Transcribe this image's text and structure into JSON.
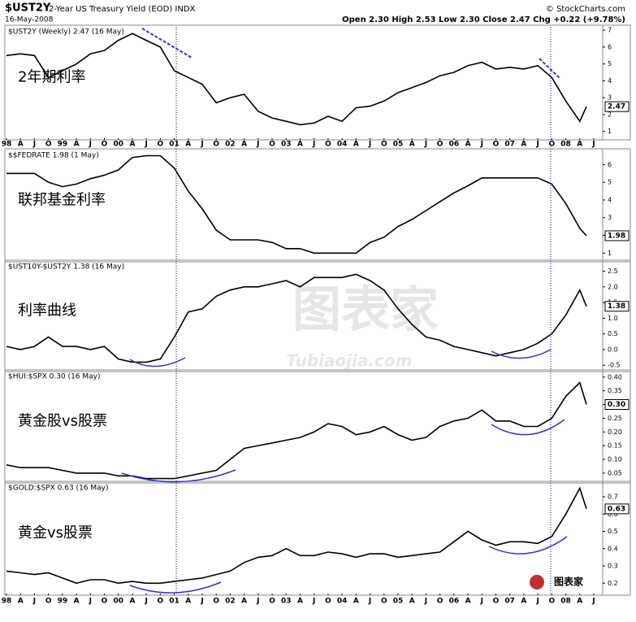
{
  "header": {
    "symbol": "$UST2Y",
    "description": "2-Year US Treasury Yield (EOD) INDX",
    "date": "16-May-2008",
    "quote": "Open 2.30 High 2.53 Low 2.30 Close 2.47 Chg +0.22 (+9.78%)",
    "credit": "© StockCharts.com",
    "watermark": "图表家",
    "watermark_url": "Tubiaojia.com"
  },
  "chart_data": [
    {
      "type": "line",
      "title": "$UST2Y (Weekly) 2.47 (16 May)",
      "annotation": "2年期利率",
      "last_label": "2.47",
      "color": "#000000",
      "x": [
        1998,
        1998.25,
        1998.5,
        1998.75,
        1999,
        1999.25,
        1999.5,
        1999.75,
        2000,
        2000.25,
        2000.5,
        2000.75,
        2001,
        2001.25,
        2001.5,
        2001.75,
        2002,
        2002.25,
        2002.5,
        2002.75,
        2003,
        2003.25,
        2003.5,
        2003.75,
        2004,
        2004.25,
        2004.5,
        2004.75,
        2005,
        2005.25,
        2005.5,
        2005.75,
        2006,
        2006.25,
        2006.5,
        2006.75,
        2007,
        2007.25,
        2007.5,
        2007.75,
        2008,
        2008.25,
        2008.37
      ],
      "values": [
        5.5,
        5.6,
        5.5,
        4.2,
        4.6,
        5.0,
        5.6,
        5.8,
        6.4,
        6.8,
        6.4,
        6.0,
        4.6,
        4.2,
        3.8,
        2.7,
        3.0,
        3.2,
        2.2,
        1.8,
        1.6,
        1.4,
        1.5,
        1.9,
        1.6,
        2.4,
        2.5,
        2.8,
        3.3,
        3.6,
        3.9,
        4.3,
        4.5,
        4.9,
        5.1,
        4.7,
        4.8,
        4.7,
        4.9,
        4.2,
        2.8,
        1.6,
        2.47
      ],
      "xlim": [
        1998,
        2008.66
      ],
      "ylim": [
        0.6,
        7.2
      ],
      "yticks": [
        1,
        2,
        3,
        4,
        5,
        6,
        7
      ],
      "xticks": [
        {
          "value": 1998,
          "label": "98"
        },
        {
          "value": 1998.25,
          "label": "A"
        },
        {
          "value": 1998.5,
          "label": "J"
        },
        {
          "value": 1998.75,
          "label": "O"
        },
        {
          "value": 1999,
          "label": "99"
        },
        {
          "value": 1999.25,
          "label": "A"
        },
        {
          "value": 1999.5,
          "label": "J"
        },
        {
          "value": 1999.75,
          "label": "O"
        },
        {
          "value": 2000,
          "label": "00"
        },
        {
          "value": 2000.25,
          "label": "A"
        },
        {
          "value": 2000.5,
          "label": "J"
        },
        {
          "value": 2000.75,
          "label": "O"
        },
        {
          "value": 2001,
          "label": "01"
        },
        {
          "value": 2001.25,
          "label": "A"
        },
        {
          "value": 2001.5,
          "label": "J"
        },
        {
          "value": 2001.75,
          "label": "O"
        },
        {
          "value": 2002,
          "label": "02"
        },
        {
          "value": 2002.25,
          "label": "A"
        },
        {
          "value": 2002.5,
          "label": "J"
        },
        {
          "value": 2002.75,
          "label": "O"
        },
        {
          "value": 2003,
          "label": "03"
        },
        {
          "value": 2003.25,
          "label": "A"
        },
        {
          "value": 2003.5,
          "label": "J"
        },
        {
          "value": 2003.75,
          "label": "O"
        },
        {
          "value": 2004,
          "label": "04"
        },
        {
          "value": 2004.25,
          "label": "A"
        },
        {
          "value": 2004.5,
          "label": "J"
        },
        {
          "value": 2004.75,
          "label": "O"
        },
        {
          "value": 2005,
          "label": "05"
        },
        {
          "value": 2005.25,
          "label": "A"
        },
        {
          "value": 2005.5,
          "label": "J"
        },
        {
          "value": 2005.75,
          "label": "O"
        },
        {
          "value": 2006,
          "label": "06"
        },
        {
          "value": 2006.25,
          "label": "A"
        },
        {
          "value": 2006.5,
          "label": "J"
        },
        {
          "value": 2006.75,
          "label": "O"
        },
        {
          "value": 2007,
          "label": "07"
        },
        {
          "value": 2007.25,
          "label": "A"
        },
        {
          "value": 2007.5,
          "label": "J"
        },
        {
          "value": 2007.75,
          "label": "O"
        },
        {
          "value": 2008,
          "label": "08"
        },
        {
          "value": 2008.25,
          "label": "A"
        },
        {
          "value": 2008.5,
          "label": "J"
        }
      ]
    },
    {
      "type": "line",
      "title": "$$FEDRATE 1.98 (1 May)",
      "annotation": "联邦基金利率",
      "last_label": "1.98",
      "color": "#000000",
      "x": [
        1998,
        1998.25,
        1998.5,
        1998.75,
        1999,
        1999.25,
        1999.5,
        1999.75,
        2000,
        2000.25,
        2000.5,
        2000.75,
        2001,
        2001.25,
        2001.5,
        2001.75,
        2002,
        2002.25,
        2002.5,
        2002.75,
        2003,
        2003.25,
        2003.5,
        2003.75,
        2004,
        2004.25,
        2004.5,
        2004.75,
        2005,
        2005.25,
        2005.5,
        2005.75,
        2006,
        2006.25,
        2006.5,
        2006.75,
        2007,
        2007.25,
        2007.5,
        2007.75,
        2008,
        2008.25,
        2008.37
      ],
      "values": [
        5.5,
        5.5,
        5.5,
        5.0,
        4.75,
        4.9,
        5.2,
        5.4,
        5.7,
        6.4,
        6.5,
        6.5,
        5.8,
        4.5,
        3.5,
        2.3,
        1.75,
        1.75,
        1.75,
        1.6,
        1.25,
        1.25,
        1.0,
        1.0,
        1.0,
        1.0,
        1.6,
        1.9,
        2.5,
        2.9,
        3.4,
        3.9,
        4.4,
        4.8,
        5.25,
        5.25,
        5.25,
        5.25,
        5.25,
        4.9,
        3.8,
        2.4,
        1.98
      ],
      "xlim": [
        1998,
        2008.66
      ],
      "ylim": [
        0.6,
        6.8
      ],
      "yticks": [
        1,
        2,
        3,
        4,
        5,
        6
      ]
    },
    {
      "type": "line",
      "title": "$UST10Y-$UST2Y 1.38 (16 May)",
      "annotation": "利率曲线",
      "last_label": "1.38",
      "color": "#000000",
      "x": [
        1998,
        1998.25,
        1998.5,
        1998.75,
        1999,
        1999.25,
        1999.5,
        1999.75,
        2000,
        2000.25,
        2000.5,
        2000.75,
        2001,
        2001.25,
        2001.5,
        2001.75,
        2002,
        2002.25,
        2002.5,
        2002.75,
        2003,
        2003.25,
        2003.5,
        2003.75,
        2004,
        2004.25,
        2004.5,
        2004.75,
        2005,
        2005.25,
        2005.5,
        2005.75,
        2006,
        2006.25,
        2006.5,
        2006.75,
        2007,
        2007.25,
        2007.5,
        2007.75,
        2008,
        2008.25,
        2008.37
      ],
      "values": [
        0.1,
        0.0,
        0.1,
        0.4,
        0.1,
        0.1,
        0.0,
        0.1,
        -0.3,
        -0.4,
        -0.4,
        -0.3,
        0.4,
        1.2,
        1.3,
        1.7,
        1.9,
        2.0,
        2.0,
        2.1,
        2.2,
        2.0,
        2.3,
        2.3,
        2.3,
        2.4,
        2.2,
        1.9,
        1.3,
        0.8,
        0.4,
        0.3,
        0.1,
        0.0,
        -0.1,
        -0.2,
        -0.1,
        0.0,
        0.2,
        0.5,
        1.1,
        1.9,
        1.38
      ],
      "xlim": [
        1998,
        2008.66
      ],
      "ylim": [
        -0.65,
        2.8
      ],
      "yticks": [
        2.5,
        {
          "value": 2,
          "label": "2.0"
        },
        1.5,
        {
          "value": 1,
          "label": "1.0"
        },
        0.5,
        {
          "value": 0,
          "label": "0.0"
        },
        -0.5
      ]
    },
    {
      "type": "line",
      "title": "$HUI:$SPX 0.30 (16 May)",
      "annotation": "黄金股vs股票",
      "last_label": "0.30",
      "color": "#000000",
      "x": [
        1998,
        1998.25,
        1998.5,
        1998.75,
        1999,
        1999.25,
        1999.5,
        1999.75,
        2000,
        2000.25,
        2000.5,
        2000.75,
        2001,
        2001.25,
        2001.5,
        2001.75,
        2002,
        2002.25,
        2002.5,
        2002.75,
        2003,
        2003.25,
        2003.5,
        2003.75,
        2004,
        2004.25,
        2004.5,
        2004.75,
        2005,
        2005.25,
        2005.5,
        2005.75,
        2006,
        2006.25,
        2006.5,
        2006.75,
        2007,
        2007.25,
        2007.5,
        2007.75,
        2008,
        2008.25,
        2008.37
      ],
      "values": [
        0.08,
        0.07,
        0.07,
        0.07,
        0.06,
        0.05,
        0.05,
        0.05,
        0.04,
        0.04,
        0.03,
        0.03,
        0.03,
        0.04,
        0.05,
        0.06,
        0.1,
        0.14,
        0.15,
        0.16,
        0.17,
        0.18,
        0.2,
        0.23,
        0.22,
        0.19,
        0.2,
        0.22,
        0.19,
        0.17,
        0.18,
        0.22,
        0.24,
        0.25,
        0.28,
        0.24,
        0.24,
        0.22,
        0.22,
        0.25,
        0.33,
        0.38,
        0.3
      ],
      "xlim": [
        1998,
        2008.66
      ],
      "ylim": [
        0.02,
        0.42
      ],
      "yticks": [
        {
          "value": 0.4,
          "label": "0.40"
        },
        0.35,
        {
          "value": 0.3,
          "label": "0.30"
        },
        0.25,
        {
          "value": 0.2,
          "label": "0.20"
        },
        0.15,
        {
          "value": 0.1,
          "label": "0.10"
        },
        0.05
      ]
    },
    {
      "type": "line",
      "title": "$GOLD:$SPX 0.63 (16 May)",
      "annotation": "黄金vs股票",
      "last_label": "0.63",
      "color": "#000000",
      "x": [
        1998,
        1998.25,
        1998.5,
        1998.75,
        1999,
        1999.25,
        1999.5,
        1999.75,
        2000,
        2000.25,
        2000.5,
        2000.75,
        2001,
        2001.25,
        2001.5,
        2001.75,
        2002,
        2002.25,
        2002.5,
        2002.75,
        2003,
        2003.25,
        2003.5,
        2003.75,
        2004,
        2004.25,
        2004.5,
        2004.75,
        2005,
        2005.25,
        2005.5,
        2005.75,
        2006,
        2006.25,
        2006.5,
        2006.75,
        2007,
        2007.25,
        2007.5,
        2007.75,
        2008,
        2008.25,
        2008.37
      ],
      "values": [
        0.27,
        0.26,
        0.25,
        0.26,
        0.23,
        0.2,
        0.22,
        0.22,
        0.2,
        0.21,
        0.2,
        0.2,
        0.21,
        0.22,
        0.23,
        0.25,
        0.27,
        0.32,
        0.35,
        0.36,
        0.4,
        0.36,
        0.36,
        0.38,
        0.37,
        0.35,
        0.37,
        0.37,
        0.35,
        0.36,
        0.37,
        0.38,
        0.44,
        0.5,
        0.45,
        0.42,
        0.44,
        0.44,
        0.43,
        0.47,
        0.6,
        0.75,
        0.63
      ],
      "xlim": [
        1998,
        2008.66
      ],
      "ylim": [
        0.14,
        0.78
      ],
      "yticks": [
        0.7,
        0.6,
        0.5,
        0.4,
        0.3,
        0.2
      ],
      "xticks": [
        {
          "value": 1998,
          "label": "98"
        },
        {
          "value": 1998.25,
          "label": "A"
        },
        {
          "value": 1998.5,
          "label": "J"
        },
        {
          "value": 1998.75,
          "label": "O"
        },
        {
          "value": 1999,
          "label": "99"
        },
        {
          "value": 1999.25,
          "label": "A"
        },
        {
          "value": 1999.5,
          "label": "J"
        },
        {
          "value": 1999.75,
          "label": "O"
        },
        {
          "value": 2000,
          "label": "00"
        },
        {
          "value": 2000.25,
          "label": "A"
        },
        {
          "value": 2000.5,
          "label": "J"
        },
        {
          "value": 2000.75,
          "label": "O"
        },
        {
          "value": 2001,
          "label": "01"
        },
        {
          "value": 2001.25,
          "label": "A"
        },
        {
          "value": 2001.5,
          "label": "J"
        },
        {
          "value": 2001.75,
          "label": "O"
        },
        {
          "value": 2002,
          "label": "02"
        },
        {
          "value": 2002.25,
          "label": "A"
        },
        {
          "value": 2002.5,
          "label": "J"
        },
        {
          "value": 2002.75,
          "label": "O"
        },
        {
          "value": 2003,
          "label": "03"
        },
        {
          "value": 2003.25,
          "label": "A"
        },
        {
          "value": 2003.5,
          "label": "J"
        },
        {
          "value": 2003.75,
          "label": "O"
        },
        {
          "value": 2004,
          "label": "04"
        },
        {
          "value": 2004.25,
          "label": "A"
        },
        {
          "value": 2004.5,
          "label": "J"
        },
        {
          "value": 2004.75,
          "label": "O"
        },
        {
          "value": 2005,
          "label": "05"
        },
        {
          "value": 2005.25,
          "label": "A"
        },
        {
          "value": 2005.5,
          "label": "J"
        },
        {
          "value": 2005.75,
          "label": "O"
        },
        {
          "value": 2006,
          "label": "06"
        },
        {
          "value": 2006.25,
          "label": "A"
        },
        {
          "value": 2006.5,
          "label": "J"
        },
        {
          "value": 2006.75,
          "label": "O"
        },
        {
          "value": 2007,
          "label": "07"
        },
        {
          "value": 2007.25,
          "label": "A"
        },
        {
          "value": 2007.5,
          "label": "J"
        },
        {
          "value": 2007.75,
          "label": "O"
        },
        {
          "value": 2008,
          "label": "08"
        },
        {
          "value": 2008.25,
          "label": "A"
        },
        {
          "value": 2008.5,
          "label": "J"
        }
      ]
    }
  ]
}
